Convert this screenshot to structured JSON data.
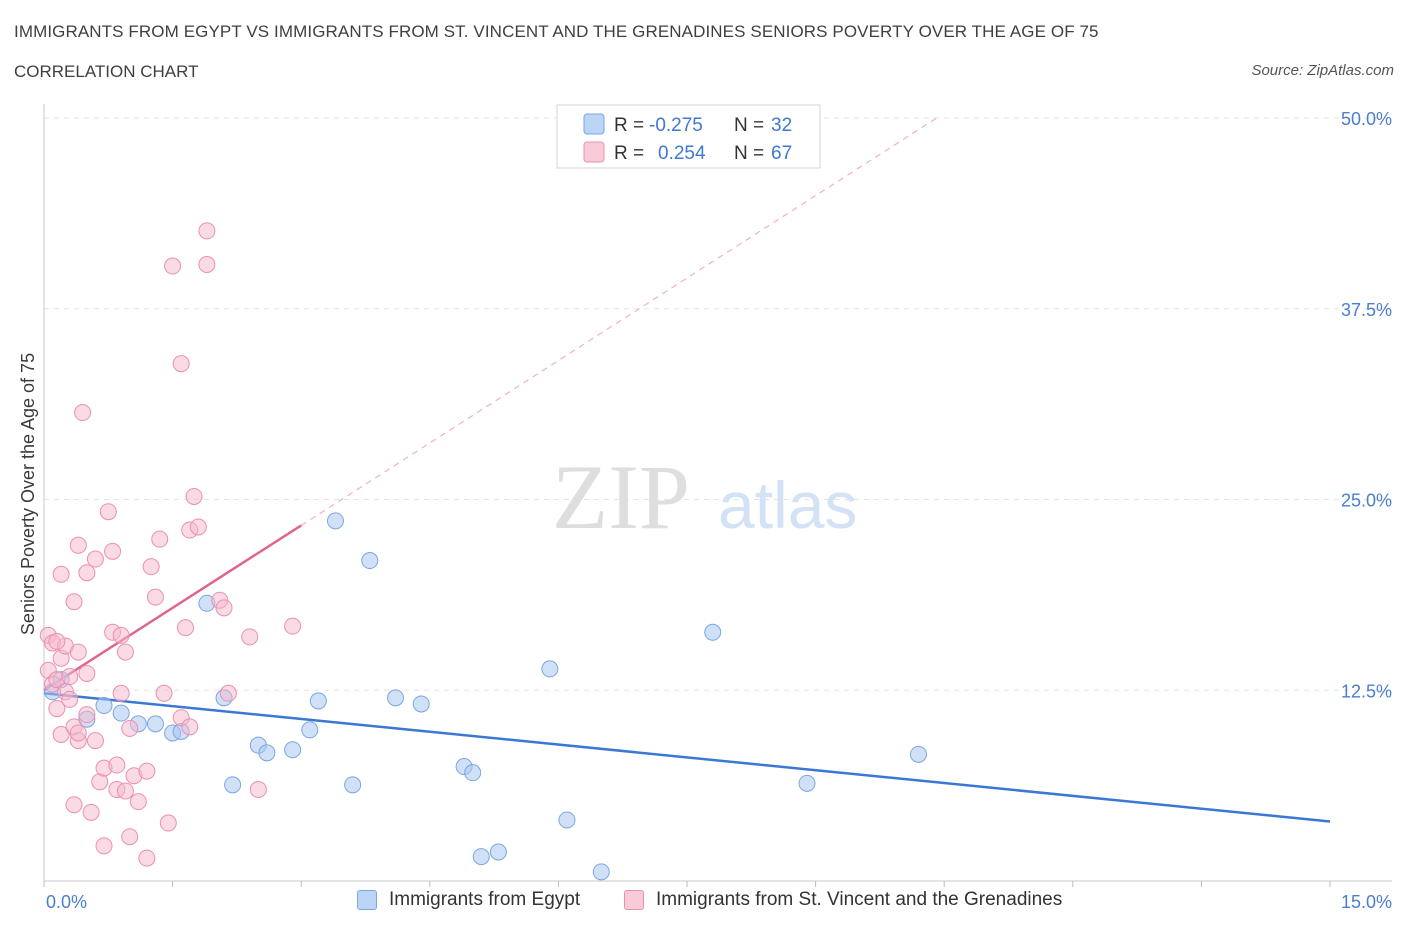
{
  "header": {
    "title": "IMMIGRANTS FROM EGYPT VS IMMIGRANTS FROM ST. VINCENT AND THE GRENADINES SENIORS POVERTY OVER THE AGE OF 75",
    "subtitle": "CORRELATION CHART",
    "source": "Source: ZipAtlas.com"
  },
  "watermark": {
    "zip": "ZIP",
    "atlas": "atlas"
  },
  "colors": {
    "blue_point": "#a9c7f0",
    "blue_stroke": "#7aa6e3",
    "blue_line": "#3a78d4",
    "pink_point": "#f6b8cc",
    "pink_stroke": "#ec8fae",
    "pink_line": "#e0648f",
    "axis_label": "#4a7fd0"
  },
  "chart_data": {
    "type": "scatter",
    "title": "IMMIGRANTS FROM EGYPT VS IMMIGRANTS FROM ST. VINCENT AND THE GRENADINES SENIORS POVERTY OVER THE AGE OF 75",
    "ylabel": "Seniors Poverty Over the Age of 75",
    "xlabel": "",
    "xlim": [
      0,
      15
    ],
    "ylim": [
      0,
      50
    ],
    "x_tick_labels": [
      "0.0%",
      "15.0%"
    ],
    "y_tick_labels": [
      "12.5%",
      "25.0%",
      "37.5%",
      "50.0%"
    ],
    "y_ticks": [
      12.5,
      25,
      37.5,
      50
    ],
    "grid": true,
    "legend_position": "top-center",
    "legend": [
      {
        "r_label": "R =",
        "r_value": "-0.275",
        "n_label": "N =",
        "n_value": "32"
      },
      {
        "r_label": "R =",
        "r_value": "0.254",
        "n_label": "N =",
        "n_value": "67"
      }
    ],
    "series": [
      {
        "name": "Immigrants from Egypt",
        "color": "#a9c7f0",
        "points": [
          [
            0.1,
            12.4
          ],
          [
            0.2,
            13.2
          ],
          [
            0.5,
            10.6
          ],
          [
            0.7,
            11.5
          ],
          [
            0.9,
            11.0
          ],
          [
            1.1,
            10.3
          ],
          [
            1.3,
            10.3
          ],
          [
            1.5,
            9.7
          ],
          [
            1.6,
            9.8
          ],
          [
            1.9,
            18.2
          ],
          [
            2.1,
            12.0
          ],
          [
            2.2,
            6.3
          ],
          [
            2.5,
            8.9
          ],
          [
            2.6,
            8.4
          ],
          [
            2.9,
            8.6
          ],
          [
            3.1,
            9.9
          ],
          [
            3.2,
            11.8
          ],
          [
            3.4,
            23.6
          ],
          [
            3.6,
            6.3
          ],
          [
            3.8,
            21.0
          ],
          [
            4.1,
            12.0
          ],
          [
            4.4,
            11.6
          ],
          [
            4.9,
            7.5
          ],
          [
            5.0,
            7.1
          ],
          [
            5.1,
            1.6
          ],
          [
            5.3,
            1.9
          ],
          [
            5.9,
            13.9
          ],
          [
            6.1,
            4.0
          ],
          [
            6.5,
            0.6
          ],
          [
            7.8,
            16.3
          ],
          [
            8.9,
            6.4
          ],
          [
            10.2,
            8.3
          ]
        ],
        "trend": {
          "x": [
            0,
            15
          ],
          "y": [
            12.3,
            3.9
          ]
        }
      },
      {
        "name": "Immigrants from St. Vincent and the Grenadines",
        "color": "#f6b8cc",
        "points": [
          [
            0.05,
            16.1
          ],
          [
            0.05,
            13.8
          ],
          [
            0.1,
            12.9
          ],
          [
            0.1,
            15.6
          ],
          [
            0.15,
            13.2
          ],
          [
            0.15,
            11.3
          ],
          [
            0.2,
            9.6
          ],
          [
            0.2,
            14.6
          ],
          [
            0.2,
            20.1
          ],
          [
            0.25,
            15.4
          ],
          [
            0.25,
            12.4
          ],
          [
            0.3,
            13.4
          ],
          [
            0.3,
            11.9
          ],
          [
            0.35,
            10.1
          ],
          [
            0.35,
            18.3
          ],
          [
            0.35,
            5.0
          ],
          [
            0.4,
            9.2
          ],
          [
            0.4,
            9.7
          ],
          [
            0.4,
            22.0
          ],
          [
            0.4,
            15.0
          ],
          [
            0.45,
            30.7
          ],
          [
            0.5,
            10.9
          ],
          [
            0.5,
            13.6
          ],
          [
            0.5,
            20.2
          ],
          [
            0.55,
            4.5
          ],
          [
            0.6,
            21.1
          ],
          [
            0.6,
            9.2
          ],
          [
            0.65,
            6.5
          ],
          [
            0.7,
            7.4
          ],
          [
            0.7,
            2.3
          ],
          [
            0.75,
            24.2
          ],
          [
            0.8,
            21.6
          ],
          [
            0.8,
            16.3
          ],
          [
            0.85,
            6.0
          ],
          [
            0.85,
            7.6
          ],
          [
            0.9,
            16.1
          ],
          [
            0.9,
            12.3
          ],
          [
            0.95,
            15.0
          ],
          [
            0.95,
            5.9
          ],
          [
            1.0,
            2.9
          ],
          [
            1.0,
            10.0
          ],
          [
            1.05,
            6.9
          ],
          [
            1.1,
            5.2
          ],
          [
            1.2,
            1.5
          ],
          [
            1.2,
            7.2
          ],
          [
            1.25,
            20.6
          ],
          [
            1.3,
            18.6
          ],
          [
            1.35,
            22.4
          ],
          [
            1.4,
            12.3
          ],
          [
            1.45,
            3.8
          ],
          [
            1.5,
            40.3
          ],
          [
            1.6,
            33.9
          ],
          [
            1.6,
            10.7
          ],
          [
            1.65,
            16.6
          ],
          [
            1.7,
            10.1
          ],
          [
            1.7,
            23.0
          ],
          [
            1.75,
            25.2
          ],
          [
            1.8,
            23.2
          ],
          [
            1.9,
            42.6
          ],
          [
            1.9,
            40.4
          ],
          [
            2.05,
            18.4
          ],
          [
            2.1,
            17.9
          ],
          [
            2.15,
            12.3
          ],
          [
            2.4,
            16.0
          ],
          [
            2.5,
            6.0
          ],
          [
            2.9,
            16.7
          ],
          [
            0.15,
            15.7
          ]
        ],
        "trend": {
          "x": [
            0,
            3.0
          ],
          "y": [
            12.5,
            23.3
          ]
        },
        "trend_extended": {
          "x": [
            0,
            11.3
          ],
          "y": [
            12.5,
            53.2
          ]
        }
      }
    ]
  }
}
